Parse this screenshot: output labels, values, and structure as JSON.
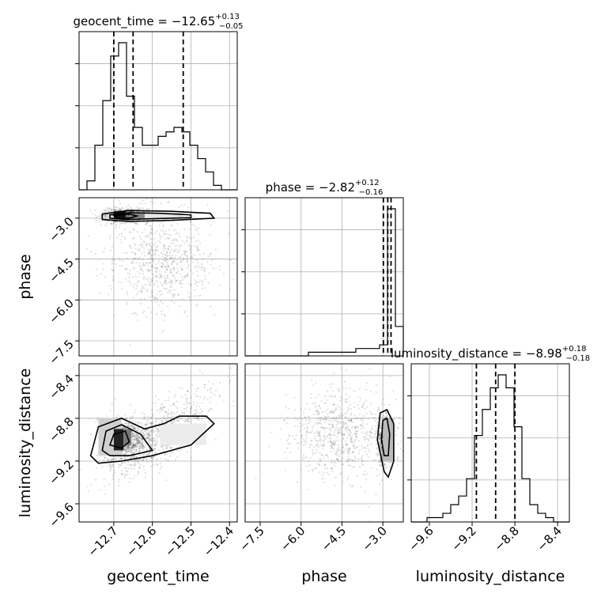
{
  "chart_data": {
    "type": "corner",
    "parameters": [
      "geocent_time",
      "phase",
      "luminosity_distance"
    ],
    "titles": [
      {
        "param": "geocent_time",
        "prefix": "geocent_time = ",
        "median": "−12.65",
        "upper": "+0.13",
        "lower": "−0.05"
      },
      {
        "param": "phase",
        "prefix": "phase = ",
        "median": "−2.82",
        "upper": "+0.12",
        "lower": "−0.16"
      },
      {
        "param": "luminosity_distance",
        "prefix": "luminosity_distance = ",
        "median": "−8.98",
        "upper": "+0.18",
        "lower": "−0.18"
      }
    ],
    "ranges": {
      "geocent_time": [
        -12.79,
        -12.38
      ],
      "phase": [
        -8.05,
        -2.25
      ],
      "luminosity_distance": [
        -9.77,
        -8.29
      ]
    },
    "ticks": {
      "geocent_time": {
        "values": [
          -12.7,
          -12.6,
          -12.5,
          -12.4
        ],
        "labels": [
          "−12.7",
          "−12.6",
          "−12.5",
          "−12.4"
        ]
      },
      "phase": {
        "values": [
          -7.5,
          -6.0,
          -4.5,
          -3.0
        ],
        "labels": [
          "−7.5",
          "−6.0",
          "−4.5",
          "−3.0"
        ]
      },
      "luminosity_distance": {
        "values": [
          -9.6,
          -9.2,
          -8.8,
          -8.4
        ],
        "labels": [
          "−9.6",
          "−9.2",
          "−8.8",
          "−8.4"
        ]
      }
    },
    "quantiles": {
      "geocent_time": [
        -12.7,
        -12.65,
        -12.52
      ],
      "phase": [
        -2.98,
        -2.82,
        -2.7
      ],
      "luminosity_distance": [
        -9.16,
        -8.98,
        -8.8
      ]
    },
    "histograms": {
      "geocent_time": {
        "bin_edges_range": [
          -12.79,
          -12.38
        ],
        "counts": [
          0,
          2,
          10,
          20,
          30,
          33,
          21,
          14,
          10,
          10,
          12,
          13,
          14,
          13,
          10,
          7,
          4,
          1,
          0,
          0
        ]
      },
      "phase": {
        "bin_edges_range": [
          -8.05,
          -2.25
        ],
        "counts": [
          0,
          0,
          0,
          0,
          0,
          0,
          0,
          0,
          1,
          1,
          1,
          1,
          1,
          1,
          2,
          2,
          2,
          3,
          40,
          8
        ]
      },
      "luminosity_distance": {
        "bin_edges_range": [
          -9.77,
          -8.29
        ],
        "counts": [
          0,
          0,
          1,
          1,
          2,
          4,
          6,
          10,
          20,
          26,
          31,
          34,
          31,
          22,
          10,
          4,
          2,
          1,
          0,
          0
        ]
      }
    },
    "grid": true,
    "legend": "none"
  }
}
